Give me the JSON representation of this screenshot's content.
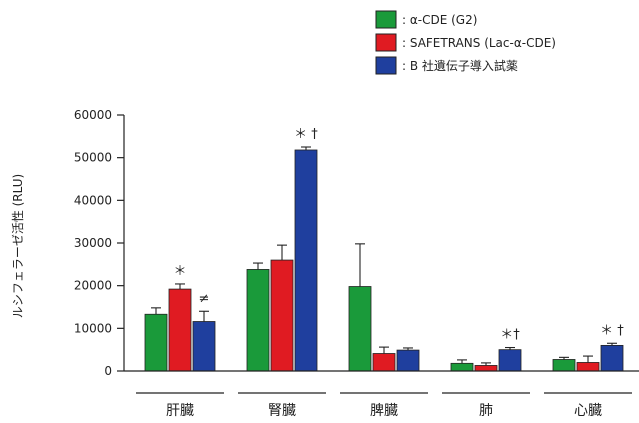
{
  "chart_data": {
    "type": "bar",
    "ylabel": "ルシフェラーゼ活性 (RLU)",
    "xlabel": "",
    "ylim": [
      0,
      60000
    ],
    "yticks": [
      0,
      10000,
      20000,
      30000,
      40000,
      50000,
      60000
    ],
    "categories": [
      "肝臓",
      "腎臓",
      "脾臓",
      "肺",
      "心臓"
    ],
    "series": [
      {
        "name": "α-CDE (G2)",
        "color": "#1a9a3a",
        "values": [
          13300,
          23800,
          19800,
          1800,
          2700
        ],
        "errors": [
          1500,
          1500,
          10000,
          800,
          500
        ]
      },
      {
        "name": "SAFETRANS (Lac-α-CDE)",
        "color": "#e01b22",
        "values": [
          19200,
          26000,
          4100,
          1300,
          2000
        ],
        "errors": [
          1200,
          3500,
          1500,
          600,
          1500
        ]
      },
      {
        "name": "B 社遺伝子導入試薬",
        "color": "#1f3f9e",
        "values": [
          11600,
          51800,
          4900,
          5000,
          6000
        ],
        "errors": [
          2400,
          700,
          500,
          500,
          500
        ]
      }
    ],
    "legend_prefix": ":",
    "legend_position": "top-right",
    "annotations": [
      {
        "category": 0,
        "series": 1,
        "text": "＊"
      },
      {
        "category": 0,
        "series": 2,
        "text": "≠"
      },
      {
        "category": 1,
        "series": 2,
        "text": "＊ †"
      },
      {
        "category": 3,
        "series": 2,
        "text": "＊†"
      },
      {
        "category": 4,
        "series": 2,
        "text": "＊ †"
      }
    ]
  }
}
